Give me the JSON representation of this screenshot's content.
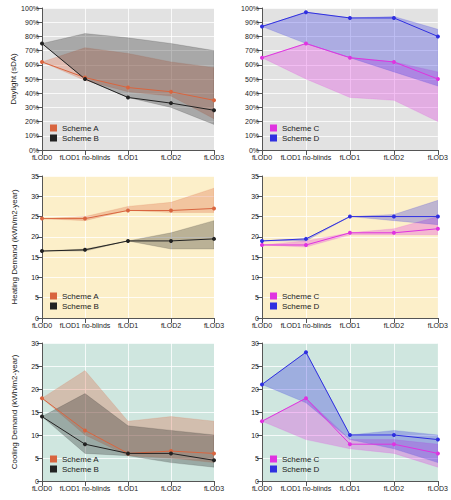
{
  "chart_data": [
    {
      "type": "line",
      "y_label": "Daylight (sDA)",
      "categories": [
        "fLOD0",
        "fLOD1 no-blinds",
        "fLOD1",
        "fLOD2",
        "fLOD3"
      ],
      "ylim": [
        0,
        100
      ],
      "yticks": [
        {
          "value": 0,
          "label": "0%"
        },
        {
          "value": 10,
          "label": "10%"
        },
        {
          "value": 20,
          "label": "20%"
        },
        {
          "value": 30,
          "label": "30%"
        },
        {
          "value": 40,
          "label": "40%"
        },
        {
          "value": 50,
          "label": "50%"
        },
        {
          "value": 60,
          "label": "60%"
        },
        {
          "value": 70,
          "label": "70%"
        },
        {
          "value": 80,
          "label": "80%"
        },
        {
          "value": 90,
          "label": "90%"
        },
        {
          "value": 100,
          "label": "100%"
        }
      ],
      "grid": true,
      "legend": "lower left",
      "series": [
        {
          "name": "Scheme A",
          "color": "#d9653f",
          "marker": "circle",
          "values": [
            62,
            51,
            44,
            41,
            35
          ],
          "lower": [
            62,
            49,
            41,
            38,
            22
          ],
          "upper": [
            62,
            72,
            68,
            62,
            58
          ]
        },
        {
          "name": "Scheme B",
          "color": "#222222",
          "marker": "circle",
          "values": [
            75,
            50,
            37,
            33,
            28
          ],
          "lower": [
            75,
            50,
            37,
            30,
            18
          ],
          "upper": [
            75,
            82,
            79,
            75,
            70
          ]
        }
      ]
    },
    {
      "type": "line",
      "categories": [
        "fLOD0",
        "fLOD1 no-blinds",
        "fLOD1",
        "fLOD2",
        "fLOD3"
      ],
      "ylim": [
        0,
        100
      ],
      "yticks": [
        {
          "value": 0,
          "label": "0%"
        },
        {
          "value": 10,
          "label": "10%"
        },
        {
          "value": 20,
          "label": "20%"
        },
        {
          "value": 30,
          "label": "30%"
        },
        {
          "value": 40,
          "label": "40%"
        },
        {
          "value": 50,
          "label": "50%"
        },
        {
          "value": 60,
          "label": "60%"
        },
        {
          "value": 70,
          "label": "70%"
        },
        {
          "value": 80,
          "label": "80%"
        },
        {
          "value": 90,
          "label": "90%"
        },
        {
          "value": 100,
          "label": "100%"
        }
      ],
      "grid": true,
      "legend": "lower left",
      "series": [
        {
          "name": "Scheme C",
          "color": "#e033e0",
          "marker": "circle",
          "values": [
            65,
            75,
            65,
            62,
            50
          ],
          "lower": [
            65,
            50,
            37,
            35,
            20
          ],
          "upper": [
            65,
            75,
            65,
            62,
            55
          ]
        },
        {
          "name": "Scheme D",
          "color": "#2f2fe0",
          "marker": "circle",
          "values": [
            87,
            97,
            93,
            93,
            80
          ],
          "lower": [
            87,
            75,
            65,
            55,
            45
          ],
          "upper": [
            87,
            97,
            93,
            94,
            85
          ]
        }
      ]
    },
    {
      "type": "line",
      "y_label": "Heating Demand (kWh/m2-year)",
      "categories": [
        "fLOD0",
        "fLOD1 no-blinds",
        "fLOD1",
        "fLOD2",
        "fLOD3"
      ],
      "ylim": [
        0,
        35
      ],
      "yticks": [
        0,
        5,
        10,
        15,
        20,
        25,
        30,
        35
      ],
      "grid": true,
      "legend": "lower left",
      "series": [
        {
          "name": "Scheme A",
          "color": "#d9653f",
          "marker": "circle",
          "values": [
            24.5,
            24.5,
            26.5,
            26.5,
            27
          ],
          "lower": [
            24.5,
            24,
            26.5,
            26,
            26
          ],
          "upper": [
            24.5,
            25,
            27.5,
            28.5,
            32
          ]
        },
        {
          "name": "Scheme B",
          "color": "#222222",
          "marker": "circle",
          "values": [
            16.5,
            16.8,
            19,
            19,
            19.5
          ],
          "lower": [
            16.5,
            16.5,
            19,
            17,
            17
          ],
          "upper": [
            16.5,
            17,
            19,
            21,
            24
          ]
        }
      ]
    },
    {
      "type": "line",
      "categories": [
        "fLOD0",
        "fLOD1 no-blinds",
        "fLOD1",
        "fLOD2",
        "fLOD3"
      ],
      "ylim": [
        0,
        35
      ],
      "yticks": [
        0,
        5,
        10,
        15,
        20,
        25,
        30,
        35
      ],
      "grid": true,
      "legend": "lower left",
      "series": [
        {
          "name": "Scheme C",
          "color": "#e033e0",
          "marker": "circle",
          "values": [
            18,
            18,
            21,
            21,
            22
          ],
          "lower": [
            18,
            17.5,
            20.5,
            20.5,
            20.5
          ],
          "upper": [
            18,
            19,
            21,
            22,
            25
          ]
        },
        {
          "name": "Scheme D",
          "color": "#2f2fe0",
          "marker": "circle",
          "values": [
            19,
            19.5,
            25,
            25,
            25
          ],
          "lower": [
            19,
            19,
            25,
            24,
            23
          ],
          "upper": [
            19,
            19.5,
            25,
            25.5,
            29
          ]
        }
      ]
    },
    {
      "type": "line",
      "y_label": "Cooling Demand (kWh/m2-year)",
      "categories": [
        "fLOD0",
        "fLOD1 no-blinds",
        "fLOD1",
        "fLOD2",
        "fLOD3"
      ],
      "ylim": [
        0,
        30
      ],
      "yticks": [
        0,
        5,
        10,
        15,
        20,
        25,
        30
      ],
      "grid": true,
      "legend": "lower left",
      "series": [
        {
          "name": "Scheme A",
          "color": "#d9653f",
          "marker": "circle",
          "values": [
            18,
            11,
            6,
            6.5,
            6
          ],
          "lower": [
            18,
            10,
            5.5,
            5,
            4
          ],
          "upper": [
            18,
            24,
            13,
            14,
            13
          ]
        },
        {
          "name": "Scheme B",
          "color": "#222222",
          "marker": "circle",
          "values": [
            14,
            8,
            6,
            6,
            4.5
          ],
          "lower": [
            14,
            6,
            5.5,
            4,
            3
          ],
          "upper": [
            14,
            19,
            12,
            11,
            10
          ]
        }
      ]
    },
    {
      "type": "line",
      "categories": [
        "fLOD0",
        "fLOD1 no-blinds",
        "fLOD1",
        "fLOD2",
        "fLOD3"
      ],
      "ylim": [
        0,
        30
      ],
      "yticks": [
        0,
        5,
        10,
        15,
        20,
        25,
        30
      ],
      "grid": true,
      "legend": "lower left",
      "series": [
        {
          "name": "Scheme C",
          "color": "#e033e0",
          "marker": "circle",
          "values": [
            13,
            18,
            8,
            8,
            6
          ],
          "lower": [
            13,
            9,
            7,
            6,
            3
          ],
          "upper": [
            13,
            18,
            9,
            9,
            8
          ]
        },
        {
          "name": "Scheme D",
          "color": "#2f2fe0",
          "marker": "circle",
          "values": [
            21,
            28,
            10,
            10,
            9
          ],
          "lower": [
            21,
            17,
            9,
            7,
            4
          ],
          "upper": [
            21,
            28,
            10,
            11,
            10
          ]
        }
      ]
    }
  ]
}
